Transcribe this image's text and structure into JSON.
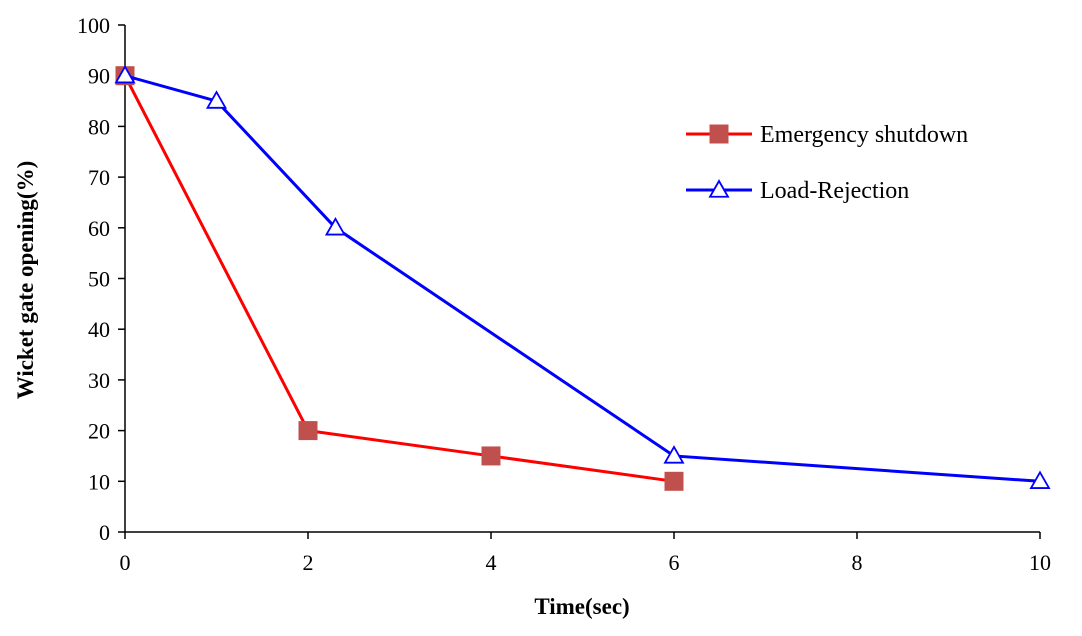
{
  "chart_data": {
    "type": "line",
    "title": "",
    "xlabel": "Time(sec)",
    "ylabel": "Wicket gate opening(%)",
    "xlim": [
      0,
      10
    ],
    "ylim": [
      0,
      100
    ],
    "xticks": [
      0,
      2,
      4,
      6,
      8,
      10
    ],
    "yticks": [
      0,
      10,
      20,
      30,
      40,
      50,
      60,
      70,
      80,
      90,
      100
    ],
    "xtick_labels": [
      "0",
      "2",
      "4",
      "6",
      "8",
      "10"
    ],
    "ytick_labels": [
      "0",
      "10",
      "20",
      "30",
      "40",
      "50",
      "60",
      "70",
      "80",
      "90",
      "100"
    ],
    "grid": false,
    "legend_position": "right",
    "series": [
      {
        "name": "Emergency shutdown",
        "color": "#ff0000",
        "marker": "square",
        "marker_color": "#c0504d",
        "points": [
          [
            0,
            90
          ],
          [
            2,
            20
          ],
          [
            4,
            15
          ],
          [
            6,
            10
          ]
        ]
      },
      {
        "name": "Load-Rejection",
        "color": "#0000ff",
        "marker": "triangle-open",
        "marker_color": "#0000ff",
        "points": [
          [
            0,
            90
          ],
          [
            1,
            85
          ],
          [
            2.3,
            60
          ],
          [
            6,
            15
          ],
          [
            10,
            10
          ]
        ]
      }
    ]
  }
}
